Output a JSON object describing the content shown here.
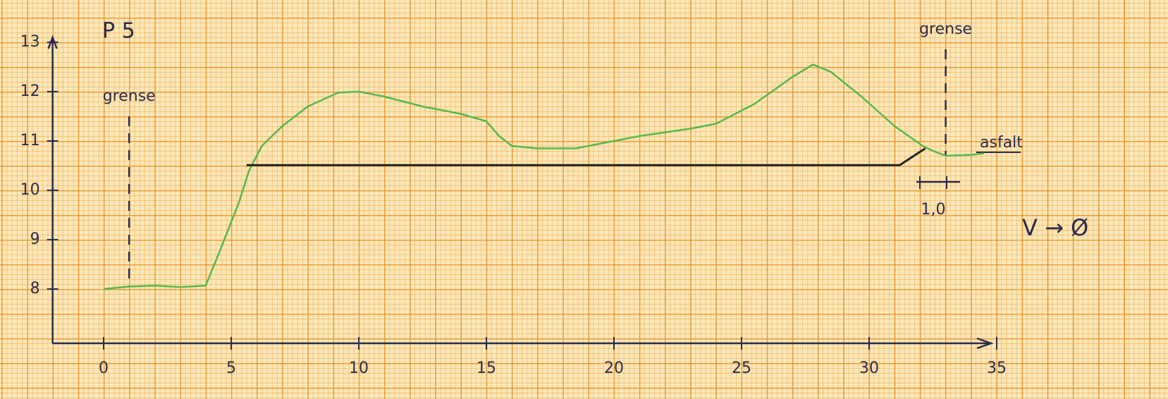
{
  "chart_data": {
    "type": "line",
    "title": "P 5",
    "xlim": [
      -2,
      35
    ],
    "ylim": [
      6.9,
      13.1
    ],
    "xticks": [
      0,
      5,
      10,
      15,
      20,
      25,
      30,
      35
    ],
    "yticks": [
      8,
      9,
      10,
      11,
      12,
      13
    ],
    "series": [
      {
        "color": "#55b84a",
        "x": [
          0,
          1,
          2,
          3,
          4,
          4.5,
          5.3,
          5.7,
          6.2,
          7,
          8,
          9.2,
          10,
          11,
          12.5,
          14,
          15,
          15.5,
          16,
          17,
          18.5,
          19.5,
          21,
          23,
          24,
          25.5,
          27,
          27.8,
          28.5,
          29.7,
          31,
          32.1,
          32.5,
          33,
          34,
          34.5
        ],
        "values": [
          8.0,
          8.05,
          8.07,
          8.04,
          8.07,
          8.7,
          9.75,
          10.4,
          10.9,
          11.3,
          11.7,
          11.98,
          12.0,
          11.9,
          11.7,
          11.55,
          11.4,
          11.1,
          10.9,
          10.85,
          10.85,
          10.95,
          11.1,
          11.25,
          11.35,
          11.75,
          12.3,
          12.55,
          12.4,
          11.9,
          11.3,
          10.9,
          10.8,
          10.7,
          10.72,
          10.75
        ]
      },
      {
        "color": "#222222",
        "x": [
          5.6,
          31.2,
          32.2
        ],
        "values": [
          10.51,
          10.51,
          10.85
        ]
      }
    ],
    "markers": [
      {
        "label": "grense",
        "x": 1
      },
      {
        "label": "grense",
        "x": 33
      }
    ],
    "annotations": [
      "asfalt",
      "1,0",
      "V → Ø"
    ]
  }
}
